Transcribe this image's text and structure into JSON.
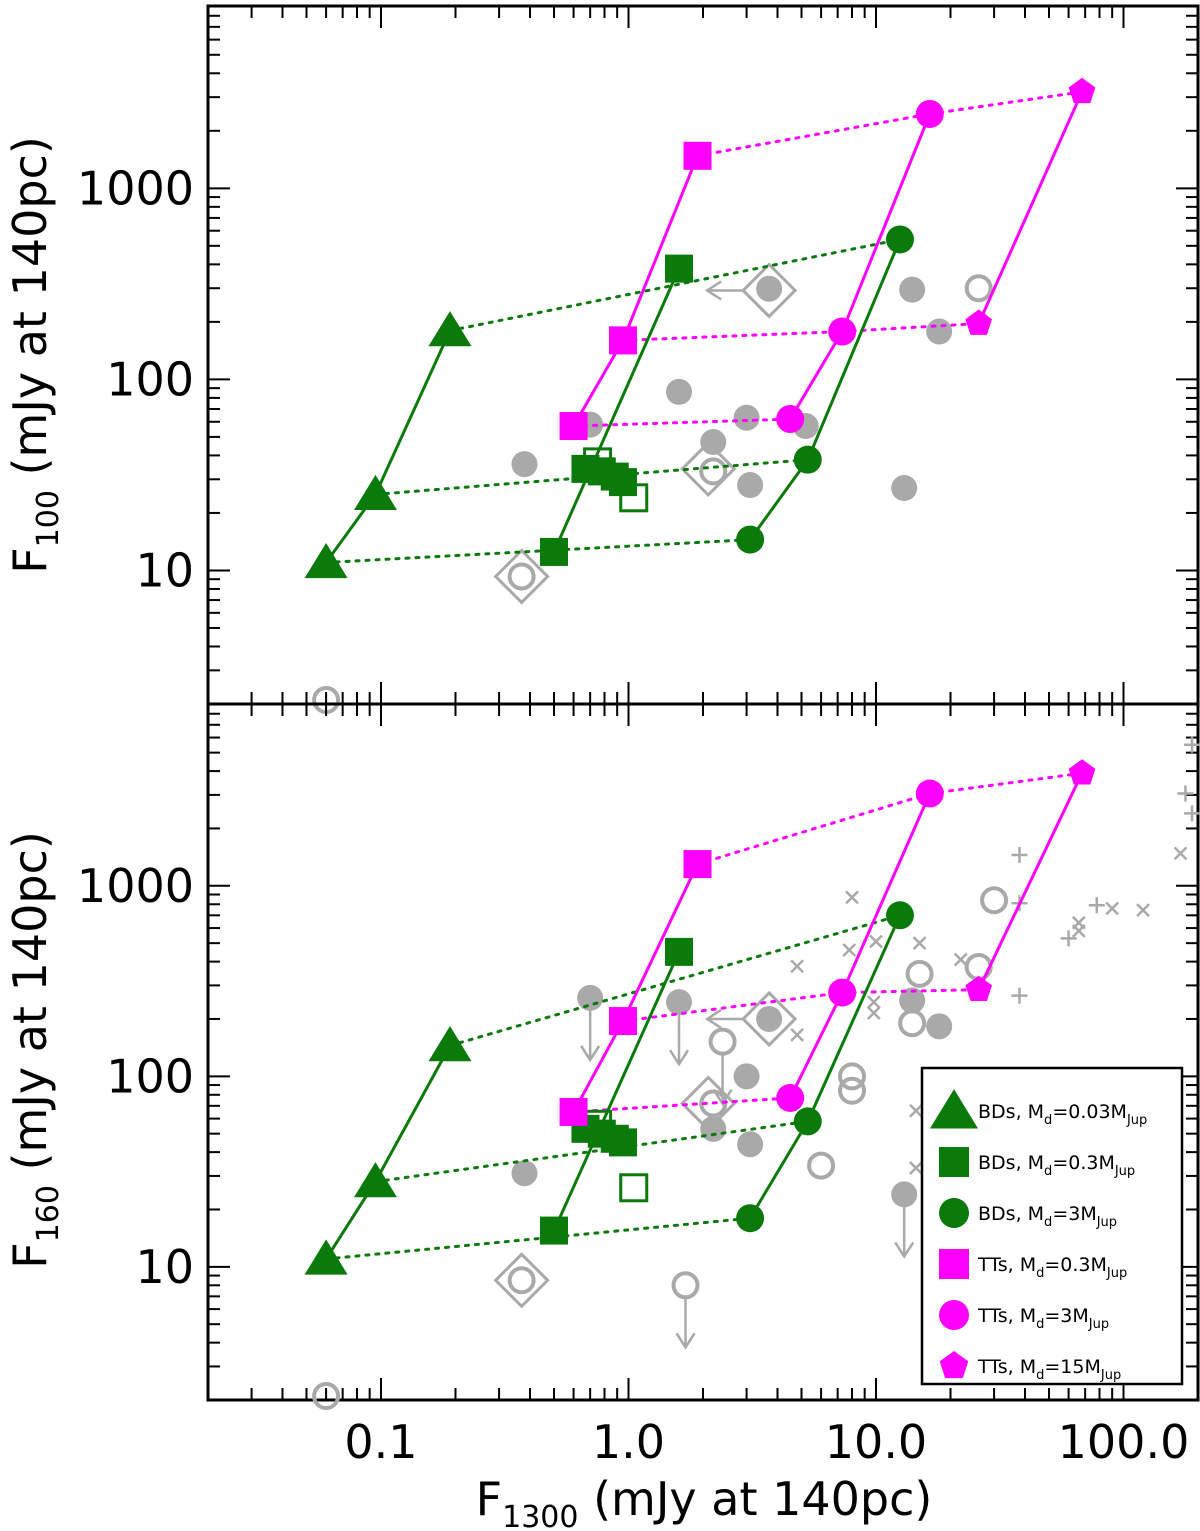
{
  "chart_data": [
    {
      "type": "scatter",
      "panel": "top",
      "ylabel": {
        "main": "F",
        "sub": "100",
        "rest": " (mJy at 140pc)"
      },
      "xlabel": {
        "main": "F",
        "sub": "1300",
        "rest": " (mJy at 140pc)"
      },
      "x_scale": "log",
      "y_scale": "log",
      "xlim": [
        0.02,
        200
      ],
      "ylim": [
        2,
        9000
      ],
      "yticks": [
        {
          "v": 10,
          "label": "10"
        },
        {
          "v": 100,
          "label": "100"
        },
        {
          "v": 1000,
          "label": "1000"
        }
      ],
      "model_tracks": [
        {
          "name": "BDs, Md=0.03MJup",
          "color": "#0a7a0a",
          "marker": "triangle",
          "points": [
            [
              0.06,
              11
            ],
            [
              0.095,
              25
            ],
            [
              0.19,
              180
            ]
          ]
        },
        {
          "name": "BDs, Md=0.3MJup",
          "color": "#0a7a0a",
          "marker": "square",
          "points": [
            [
              0.5,
              12.5
            ],
            [
              0.67,
              34
            ],
            [
              0.78,
              33
            ],
            [
              0.88,
              31
            ],
            [
              0.95,
              29
            ],
            [
              1.6,
              380
            ]
          ]
        },
        {
          "name": "BDs, Md=3MJup",
          "color": "#0a7a0a",
          "marker": "circle",
          "points": [
            [
              3.1,
              14.5
            ],
            [
              5.3,
              38
            ],
            [
              12.5,
              540
            ]
          ]
        },
        {
          "name": "TTs, Md=0.3MJup",
          "color": "#ff00ff",
          "marker": "square",
          "points": [
            [
              0.6,
              57
            ],
            [
              0.95,
              160
            ],
            [
              1.9,
              1480
            ]
          ]
        },
        {
          "name": "TTs, Md=3MJup",
          "color": "#ff00ff",
          "marker": "circle",
          "points": [
            [
              4.5,
              62
            ],
            [
              7.3,
              178
            ],
            [
              16.5,
              2450
            ]
          ]
        },
        {
          "name": "TTs, Md=15MJup",
          "color": "#ff00ff",
          "marker": "pentagon",
          "points": [
            [
              26,
              196
            ],
            [
              68,
              3200
            ]
          ]
        }
      ],
      "observed": {
        "filled_circles": [
          [
            0.38,
            36
          ],
          [
            0.7,
            58
          ],
          [
            1.6,
            86
          ],
          [
            2.2,
            47
          ],
          [
            3,
            63
          ],
          [
            3.1,
            28
          ],
          [
            5.2,
            57
          ],
          [
            3.7,
            298
          ],
          [
            13,
            27
          ],
          [
            14,
            295
          ],
          [
            18,
            178
          ]
        ],
        "open_circles": [
          [
            0.06,
            2
          ],
          [
            0.37,
            9.3
          ],
          [
            2.2,
            33
          ],
          [
            26,
            300
          ]
        ],
        "diamonds": [
          [
            0.37,
            9.3
          ],
          [
            2.1,
            34
          ],
          [
            3.7,
            292
          ]
        ],
        "open_squares": [
          [
            1.05,
            24
          ],
          [
            0.75,
            37
          ]
        ],
        "upper_limit_arrows_left": [
          [
            3.7,
            292
          ]
        ]
      }
    },
    {
      "type": "scatter",
      "panel": "bottom",
      "ylabel": {
        "main": "F",
        "sub": "160",
        "rest": " (mJy at 140pc)"
      },
      "xlabel": {
        "main": "F",
        "sub": "1300",
        "rest": " (mJy at 140pc)"
      },
      "x_scale": "log",
      "y_scale": "log",
      "xlim": [
        0.02,
        200
      ],
      "ylim": [
        2,
        9000
      ],
      "xticks": [
        {
          "v": 0.1,
          "label": "0.1"
        },
        {
          "v": 1,
          "label": "1.0"
        },
        {
          "v": 10,
          "label": "10.0"
        },
        {
          "v": 100,
          "label": "100.0"
        }
      ],
      "yticks": [
        {
          "v": 10,
          "label": "10"
        },
        {
          "v": 100,
          "label": "100"
        },
        {
          "v": 1000,
          "label": "1000"
        }
      ],
      "model_tracks": [
        {
          "name": "BDs, Md=0.03MJup",
          "color": "#0a7a0a",
          "marker": "triangle",
          "points": [
            [
              0.06,
              11
            ],
            [
              0.095,
              28
            ],
            [
              0.19,
              145
            ]
          ]
        },
        {
          "name": "BDs, Md=0.3MJup",
          "color": "#0a7a0a",
          "marker": "square",
          "points": [
            [
              0.5,
              15.5
            ],
            [
              0.67,
              53
            ],
            [
              0.78,
              50
            ],
            [
              0.88,
              47
            ],
            [
              0.95,
              45
            ],
            [
              1.6,
              450
            ]
          ]
        },
        {
          "name": "BDs, Md=3MJup",
          "color": "#0a7a0a",
          "marker": "circle",
          "points": [
            [
              3.1,
              18
            ],
            [
              5.3,
              58
            ],
            [
              12.5,
              700
            ]
          ]
        },
        {
          "name": "TTs, Md=0.3MJup",
          "color": "#ff00ff",
          "marker": "square",
          "points": [
            [
              0.6,
              65
            ],
            [
              0.95,
              195
            ],
            [
              1.9,
              1300
            ]
          ]
        },
        {
          "name": "TTs, Md=3MJup",
          "color": "#ff00ff",
          "marker": "circle",
          "points": [
            [
              4.5,
              77
            ],
            [
              7.3,
              275
            ],
            [
              16.5,
              3050
            ]
          ]
        },
        {
          "name": "TTs, Md=15MJup",
          "color": "#ff00ff",
          "marker": "pentagon",
          "points": [
            [
              26,
              285
            ],
            [
              68,
              3900
            ]
          ]
        }
      ],
      "observed": {
        "filled_circles": [
          [
            0.38,
            31
          ],
          [
            0.7,
            258
          ],
          [
            1.6,
            245
          ],
          [
            2.2,
            53
          ],
          [
            3,
            100
          ],
          [
            3.1,
            44
          ],
          [
            3.7,
            200
          ],
          [
            13,
            24
          ],
          [
            14,
            250
          ],
          [
            18,
            183
          ]
        ],
        "open_circles": [
          [
            0.06,
            2
          ],
          [
            0.37,
            8.5
          ],
          [
            1.7,
            8
          ],
          [
            2.2,
            72
          ],
          [
            2.4,
            152
          ],
          [
            6,
            34
          ],
          [
            8,
            100
          ],
          [
            8,
            84
          ],
          [
            14,
            190
          ],
          [
            15,
            345
          ],
          [
            26,
            375
          ],
          [
            30,
            840
          ]
        ],
        "diamonds": [
          [
            0.37,
            8.5
          ],
          [
            2.1,
            72
          ],
          [
            3.7,
            200
          ]
        ],
        "open_squares": [
          [
            1.05,
            26
          ],
          [
            0.75,
            56
          ]
        ],
        "upper_limit_arrows_down": [
          [
            0.7,
            258
          ],
          [
            1.6,
            245
          ],
          [
            1.7,
            8
          ],
          [
            13,
            24
          ],
          [
            2.4,
            152
          ]
        ],
        "upper_limit_arrows_left": [
          [
            3.7,
            200
          ]
        ],
        "crosses_x": [
          [
            8,
            870
          ],
          [
            10,
            510
          ],
          [
            7.8,
            460
          ],
          [
            4.8,
            378
          ],
          [
            4.8,
            165
          ],
          [
            9.8,
            245
          ],
          [
            9.8,
            215
          ],
          [
            14.5,
            66
          ],
          [
            14.5,
            33
          ],
          [
            22,
            410
          ],
          [
            66,
            640
          ],
          [
            66,
            580
          ],
          [
            90,
            760
          ],
          [
            120,
            745
          ],
          [
            170,
            1480
          ],
          [
            15,
            500
          ]
        ],
        "crosses_plus": [
          [
            38,
            1450
          ],
          [
            38,
            810
          ],
          [
            38,
            265
          ],
          [
            60,
            530
          ],
          [
            78,
            790
          ],
          [
            178,
            3050
          ],
          [
            190,
            2400
          ],
          [
            195,
            5500
          ]
        ]
      },
      "legend": {
        "placement": "bottom-right",
        "items": [
          {
            "prefix": "BDs, M",
            "sub1": "d",
            "mid": "=0.03M",
            "sub2": "Jup",
            "color": "#0a7a0a",
            "marker": "triangle"
          },
          {
            "prefix": "BDs, M",
            "sub1": "d",
            "mid": "=0.3M",
            "sub2": "Jup",
            "color": "#0a7a0a",
            "marker": "square"
          },
          {
            "prefix": "BDs, M",
            "sub1": "d",
            "mid": "=3M",
            "sub2": "Jup",
            "color": "#0a7a0a",
            "marker": "circle"
          },
          {
            "prefix": "TTs, M",
            "sub1": "d",
            "mid": "=0.3M",
            "sub2": "Jup",
            "color": "#ff00ff",
            "marker": "square"
          },
          {
            "prefix": "TTs, M",
            "sub1": "d",
            "mid": "=3M",
            "sub2": "Jup",
            "color": "#ff00ff",
            "marker": "circle"
          },
          {
            "prefix": "TTs, M",
            "sub1": "d",
            "mid": "=15M",
            "sub2": "Jup",
            "color": "#ff00ff",
            "marker": "pentagon"
          }
        ]
      }
    }
  ]
}
